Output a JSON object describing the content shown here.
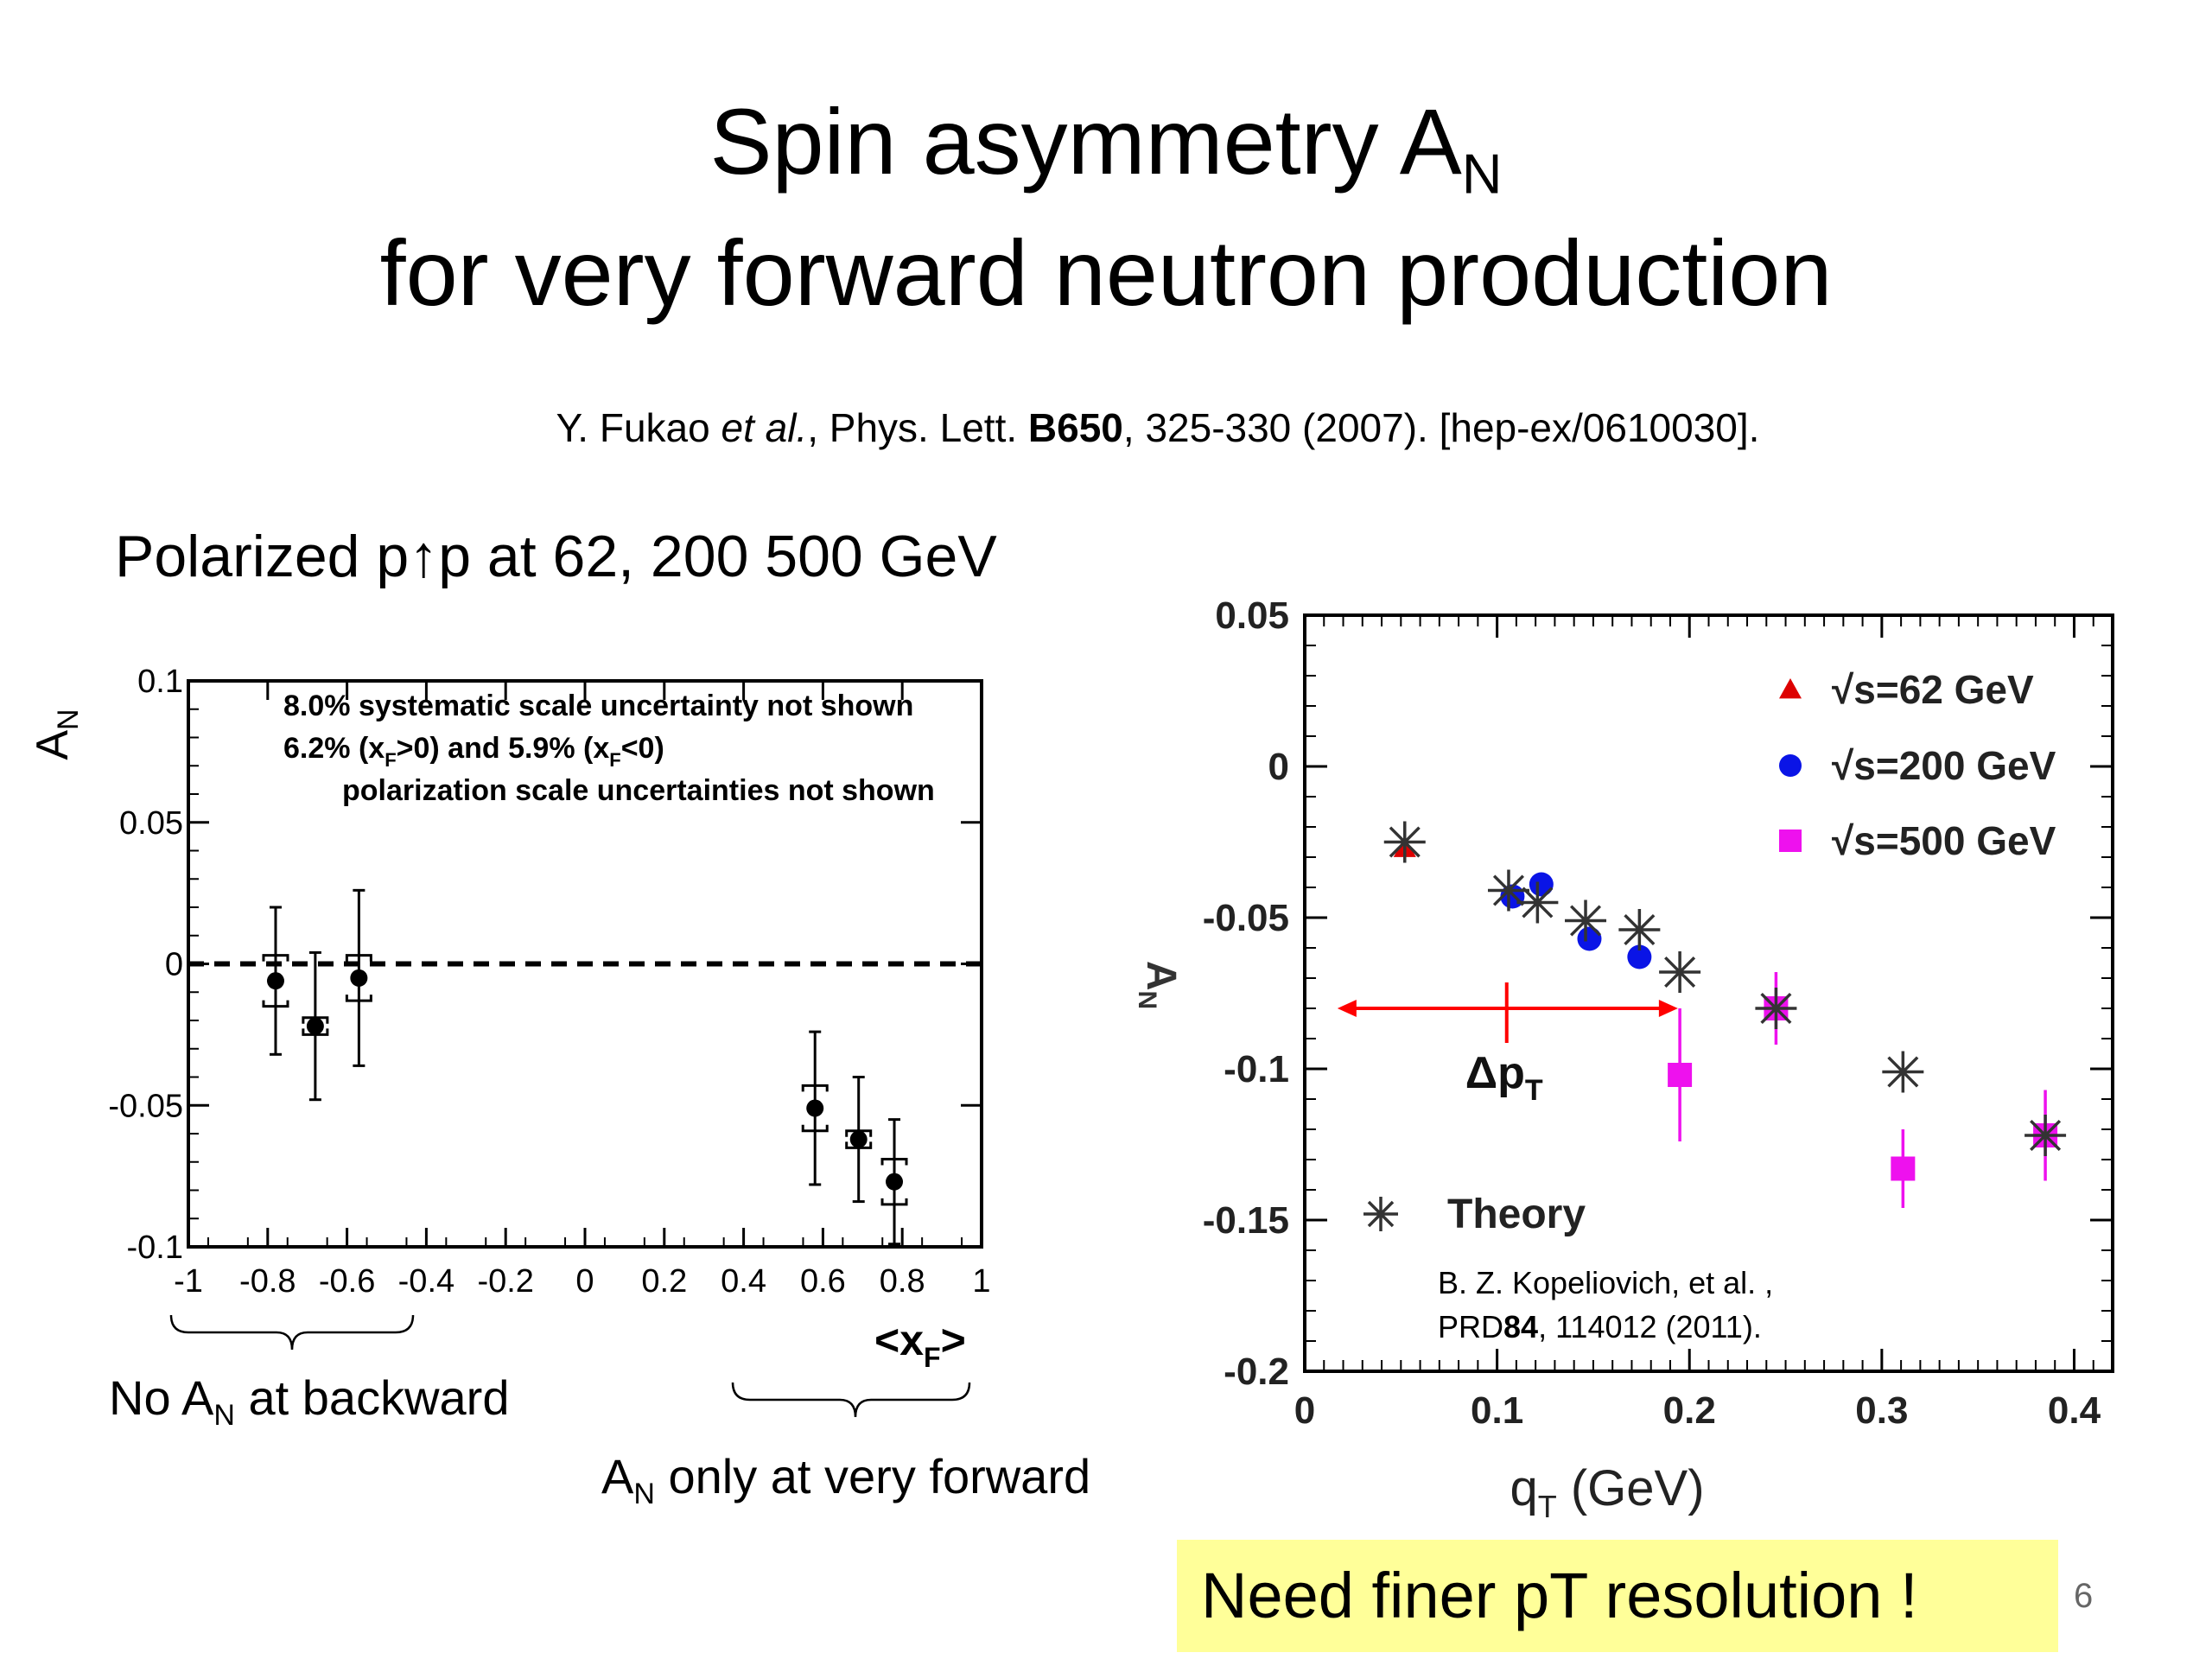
{
  "slide": {
    "title_main": "Spin asymmetry A",
    "title_sub": "N",
    "title_line2": "for very forward neutron production",
    "citation_1": "Y. Fukao ",
    "citation_etal": "et al.",
    "citation_2": ", Phys. Lett. ",
    "citation_vol": "B650",
    "citation_3": ", 325-330 (2007). [hep-ex/0610030].",
    "polarized": "Polarized p↑p at 62, 200 500 GeV",
    "backward_1": "No A",
    "backward_sub": "N",
    "backward_2": " at backward",
    "forward_1": "A",
    "forward_sub": "N",
    "forward_2": " only at very forward",
    "callout": "Need finer pT resolution !",
    "page_number": "6"
  },
  "chart_data": [
    {
      "type": "scatter",
      "ylabel": "A_N",
      "xlabel": "<x_F>",
      "xlim": [
        -1,
        1
      ],
      "ylim": [
        -0.1,
        0.1
      ],
      "x_ticks": [
        "-1",
        "-0.8",
        "-0.6",
        "-0.4",
        "-0.2",
        "0",
        "0.2",
        "0.4",
        "0.6",
        "0.8",
        "1"
      ],
      "y_ticks": [
        "0.1",
        "0.05",
        "0",
        "-0.05",
        "-0.1"
      ],
      "notes": {
        "line1": "8.0% systematic scale uncertainty not shown",
        "line2a": "6.2% (x",
        "line2b": "F",
        "line2c": ">0) and 5.9% (x",
        "line2d": "F",
        "line2e": "<0)",
        "line3": "polarization scale uncertainties not shown"
      },
      "zero_line": "dashed",
      "points": [
        {
          "x": -0.78,
          "y": -0.006,
          "err": 0.026,
          "sys": 0.009
        },
        {
          "x": -0.68,
          "y": -0.022,
          "err": 0.026,
          "sys": 0.003
        },
        {
          "x": -0.57,
          "y": -0.005,
          "err": 0.031,
          "sys": 0.008
        },
        {
          "x": 0.58,
          "y": -0.051,
          "err": 0.027,
          "sys": 0.008
        },
        {
          "x": 0.69,
          "y": -0.062,
          "err": 0.022,
          "sys": 0.003
        },
        {
          "x": 0.78,
          "y": -0.077,
          "err": 0.022,
          "sys": 0.008
        }
      ]
    },
    {
      "type": "scatter",
      "ylabel": "A_N",
      "xlabel_main": "q",
      "xlabel_sub": "T",
      "xlabel_unit": " (GeV)",
      "xlim": [
        0,
        0.42
      ],
      "ylim": [
        -0.2,
        0.05
      ],
      "x_ticks": [
        "0",
        "0.1",
        "0.2",
        "0.3",
        "0.4"
      ],
      "y_ticks": [
        "0.05",
        "0",
        "-0.05",
        "-0.1",
        "-0.15",
        "-0.2"
      ],
      "series": [
        {
          "name": "√s=62 GeV",
          "color": "#dd0000",
          "marker": "triangle",
          "points": [
            {
              "x": 0.052,
              "y": -0.027,
              "err": 0.002
            }
          ]
        },
        {
          "name": "√s=200 GeV",
          "color": "#0a14e6",
          "marker": "circle",
          "points": [
            {
              "x": 0.108,
              "y": -0.043,
              "err": 0.003
            },
            {
              "x": 0.123,
              "y": -0.039,
              "err": 0.003
            },
            {
              "x": 0.148,
              "y": -0.057,
              "err": 0.003
            },
            {
              "x": 0.174,
              "y": -0.063,
              "err": 0.003
            }
          ]
        },
        {
          "name": "√s=500 GeV",
          "color": "#ee11ee",
          "marker": "square",
          "points": [
            {
              "x": 0.195,
              "y": -0.102,
              "err": 0.022
            },
            {
              "x": 0.245,
              "y": -0.08,
              "err": 0.012
            },
            {
              "x": 0.311,
              "y": -0.133,
              "err": 0.013
            },
            {
              "x": 0.385,
              "y": -0.122,
              "err": 0.015
            }
          ]
        },
        {
          "name": "Theory",
          "color": "#000000",
          "marker": "asterisk",
          "points": [
            {
              "x": 0.052,
              "y": -0.025
            },
            {
              "x": 0.106,
              "y": -0.041
            },
            {
              "x": 0.121,
              "y": -0.045
            },
            {
              "x": 0.146,
              "y": -0.051
            },
            {
              "x": 0.174,
              "y": -0.054
            },
            {
              "x": 0.195,
              "y": -0.068
            },
            {
              "x": 0.245,
              "y": -0.08
            },
            {
              "x": 0.311,
              "y": -0.101
            },
            {
              "x": 0.385,
              "y": -0.122
            }
          ]
        }
      ],
      "legend_position": "top-right",
      "reference_1": "B. Z. Kopeliovich, et al. ,",
      "reference_2a": "PRD",
      "reference_2b": "84",
      "reference_2c": ", 114012 (2011).",
      "annotation": {
        "text": "Δp",
        "sub": "T",
        "color": "#ff0000",
        "x_from": 0.017,
        "x_to": 0.194,
        "y": -0.08,
        "tick_x": 0.105
      }
    }
  ]
}
